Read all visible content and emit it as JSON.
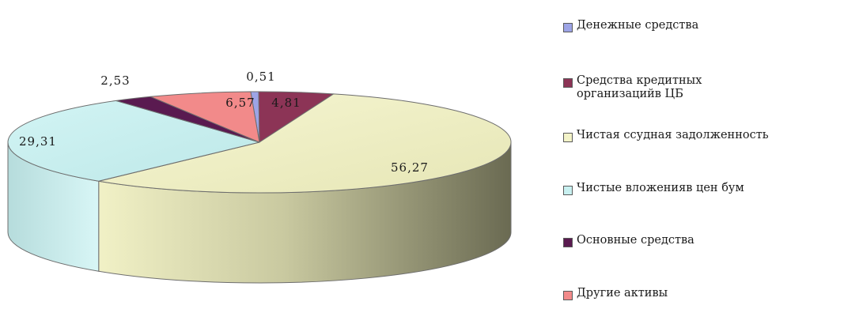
{
  "chart_data": {
    "type": "pie",
    "title": "",
    "series": [
      {
        "name": "Денежные средства",
        "value": 0.51,
        "label": "0,51",
        "color": "#9da4e6"
      },
      {
        "name": "Средства кредитных организаций в ЦБ",
        "value": 4.81,
        "label": "4,81",
        "color": "#8c3456"
      },
      {
        "name": "Чистая ссудная задолженность",
        "value": 56.27,
        "label": "56,27",
        "color": "#f3f3c8"
      },
      {
        "name": "Чистые вложения в цен бум",
        "value": 29.31,
        "label": "29,31",
        "color": "#c8f0f0"
      },
      {
        "name": "Основные средства",
        "value": 2.53,
        "label": "2,53",
        "color": "#5a1a50"
      },
      {
        "name": "Другие активы",
        "value": 6.57,
        "label": "6,57",
        "color": "#f28a8a"
      }
    ],
    "legend_placement": "right"
  },
  "legend": [
    {
      "text": "Денежные средства"
    },
    {
      "text": "Средства кредитных\nорганизацийв ЦБ"
    },
    {
      "text": "Чистая ссудная задолженность"
    },
    {
      "text": "Чистые вложенияв цен бум"
    },
    {
      "text": "Основные средства"
    },
    {
      "text": "Другие активы"
    }
  ]
}
